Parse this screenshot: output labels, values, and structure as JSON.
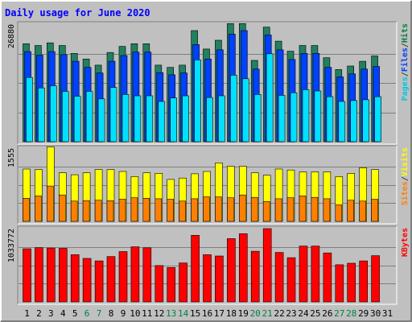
{
  "chart_data": [
    {
      "type": "bar",
      "title": "Daily usage for June 2020",
      "ymax_label": "26880",
      "ylim": [
        0,
        26880
      ],
      "side_labels": [
        {
          "text": "Pages",
          "color": "#00c8e0"
        },
        {
          "text": "/",
          "color": "#404040"
        },
        {
          "text": "Files",
          "color": "#0040ff"
        },
        {
          "text": "/",
          "color": "#404040"
        },
        {
          "text": "Hits",
          "color": "#008040"
        }
      ],
      "categories": [
        "1",
        "2",
        "3",
        "4",
        "5",
        "6",
        "7",
        "8",
        "9",
        "10",
        "11",
        "12",
        "13",
        "14",
        "15",
        "16",
        "17",
        "18",
        "19",
        "20",
        "21",
        "22",
        "23",
        "24",
        "25",
        "26",
        "27",
        "28",
        "29",
        "30",
        "31"
      ],
      "series": [
        {
          "name": "Hits",
          "color": "#208060",
          "values": [
            22400,
            22000,
            22600,
            22000,
            20200,
            18900,
            17500,
            20400,
            21800,
            22400,
            22400,
            17500,
            17000,
            17500,
            25400,
            21200,
            23200,
            27000,
            27000,
            18600,
            26200,
            23000,
            20700,
            22000,
            22000,
            19200,
            16500,
            17300,
            18400,
            19600,
            null
          ]
        },
        {
          "name": "Files",
          "color": "#0040ff",
          "values": [
            20600,
            19800,
            20600,
            19900,
            18400,
            17000,
            15700,
            18400,
            19700,
            20500,
            20500,
            15800,
            15300,
            15700,
            22200,
            18900,
            21000,
            24600,
            25400,
            16600,
            24400,
            21000,
            18800,
            20200,
            20200,
            17000,
            14800,
            15500,
            16600,
            17200,
            null
          ]
        },
        {
          "name": "Pages",
          "color": "#00e0ff",
          "values": [
            14700,
            12300,
            12800,
            11500,
            10400,
            11500,
            9800,
            12400,
            10800,
            10500,
            10500,
            9200,
            10000,
            10500,
            18700,
            10100,
            10500,
            15200,
            14400,
            10800,
            20100,
            10600,
            11200,
            11900,
            11600,
            10300,
            9200,
            9400,
            9600,
            10300,
            null
          ]
        }
      ]
    },
    {
      "type": "bar",
      "ymax_label": "1555",
      "ylim": [
        0,
        1555
      ],
      "side_labels": [
        {
          "text": "Sites",
          "color": "#ff8000"
        },
        {
          "text": "/",
          "color": "#404040"
        },
        {
          "text": "Visits",
          "color": "#ffff00"
        }
      ],
      "categories": [
        "1",
        "2",
        "3",
        "4",
        "5",
        "6",
        "7",
        "8",
        "9",
        "10",
        "11",
        "12",
        "13",
        "14",
        "15",
        "16",
        "17",
        "18",
        "19",
        "20",
        "21",
        "22",
        "23",
        "24",
        "25",
        "26",
        "27",
        "28",
        "29",
        "30",
        "31"
      ],
      "series": [
        {
          "name": "Visits",
          "color": "#ffff00",
          "values": [
            1110,
            1100,
            1580,
            1030,
            990,
            1030,
            1100,
            1100,
            1060,
            950,
            1030,
            1020,
            890,
            920,
            1010,
            1060,
            1240,
            1170,
            1170,
            1030,
            980,
            1110,
            1090,
            1050,
            1050,
            1050,
            950,
            1020,
            1140,
            1100,
            null
          ]
        },
        {
          "name": "Sites",
          "color": "#ff8000",
          "values": [
            490,
            540,
            750,
            560,
            430,
            440,
            450,
            440,
            470,
            500,
            490,
            480,
            470,
            430,
            480,
            520,
            520,
            500,
            560,
            510,
            420,
            480,
            500,
            540,
            510,
            480,
            350,
            450,
            430,
            470,
            null
          ]
        }
      ]
    },
    {
      "type": "bar",
      "ymax_label": "1033772",
      "ylim": [
        0,
        1033772
      ],
      "side_labels": [
        {
          "text": "KBytes",
          "color": "#ff0000"
        }
      ],
      "categories": [
        "1",
        "2",
        "3",
        "4",
        "5",
        "6",
        "7",
        "8",
        "9",
        "10",
        "11",
        "12",
        "13",
        "14",
        "15",
        "16",
        "17",
        "18",
        "19",
        "20",
        "21",
        "22",
        "23",
        "24",
        "25",
        "26",
        "27",
        "28",
        "29",
        "30",
        "31"
      ],
      "series": [
        {
          "name": "KBytes",
          "color": "#ff0000",
          "values": [
            750000,
            765000,
            760000,
            755000,
            666000,
            614000,
            578000,
            640000,
            710000,
            777000,
            763000,
            512000,
            485000,
            549000,
            940000,
            666000,
            647000,
            893000,
            962000,
            714000,
            1033772,
            698000,
            624000,
            787000,
            787000,
            691000,
            524000,
            545000,
            578000,
            652000,
            null
          ]
        }
      ]
    }
  ],
  "x_axis": {
    "labels": [
      "1",
      "2",
      "3",
      "4",
      "5",
      "6",
      "7",
      "8",
      "9",
      "10",
      "11",
      "12",
      "13",
      "14",
      "15",
      "16",
      "17",
      "18",
      "19",
      "20",
      "21",
      "22",
      "23",
      "24",
      "25",
      "26",
      "27",
      "28",
      "29",
      "30",
      "31"
    ],
    "label_colors": [
      "#000000",
      "#000000",
      "#000000",
      "#000000",
      "#000000",
      "#008040",
      "#008040",
      "#000000",
      "#000000",
      "#000000",
      "#000000",
      "#000000",
      "#008040",
      "#008040",
      "#000000",
      "#000000",
      "#000000",
      "#000000",
      "#000000",
      "#008040",
      "#008040",
      "#000000",
      "#000000",
      "#000000",
      "#000000",
      "#000000",
      "#008040",
      "#008040",
      "#000000",
      "#000000",
      "#000000"
    ]
  },
  "colors": {
    "background": "#c0c0c0",
    "title": "#0000ff",
    "frame_light": "#ffffff",
    "frame_dark": "#808080",
    "gridline": "#808080"
  }
}
